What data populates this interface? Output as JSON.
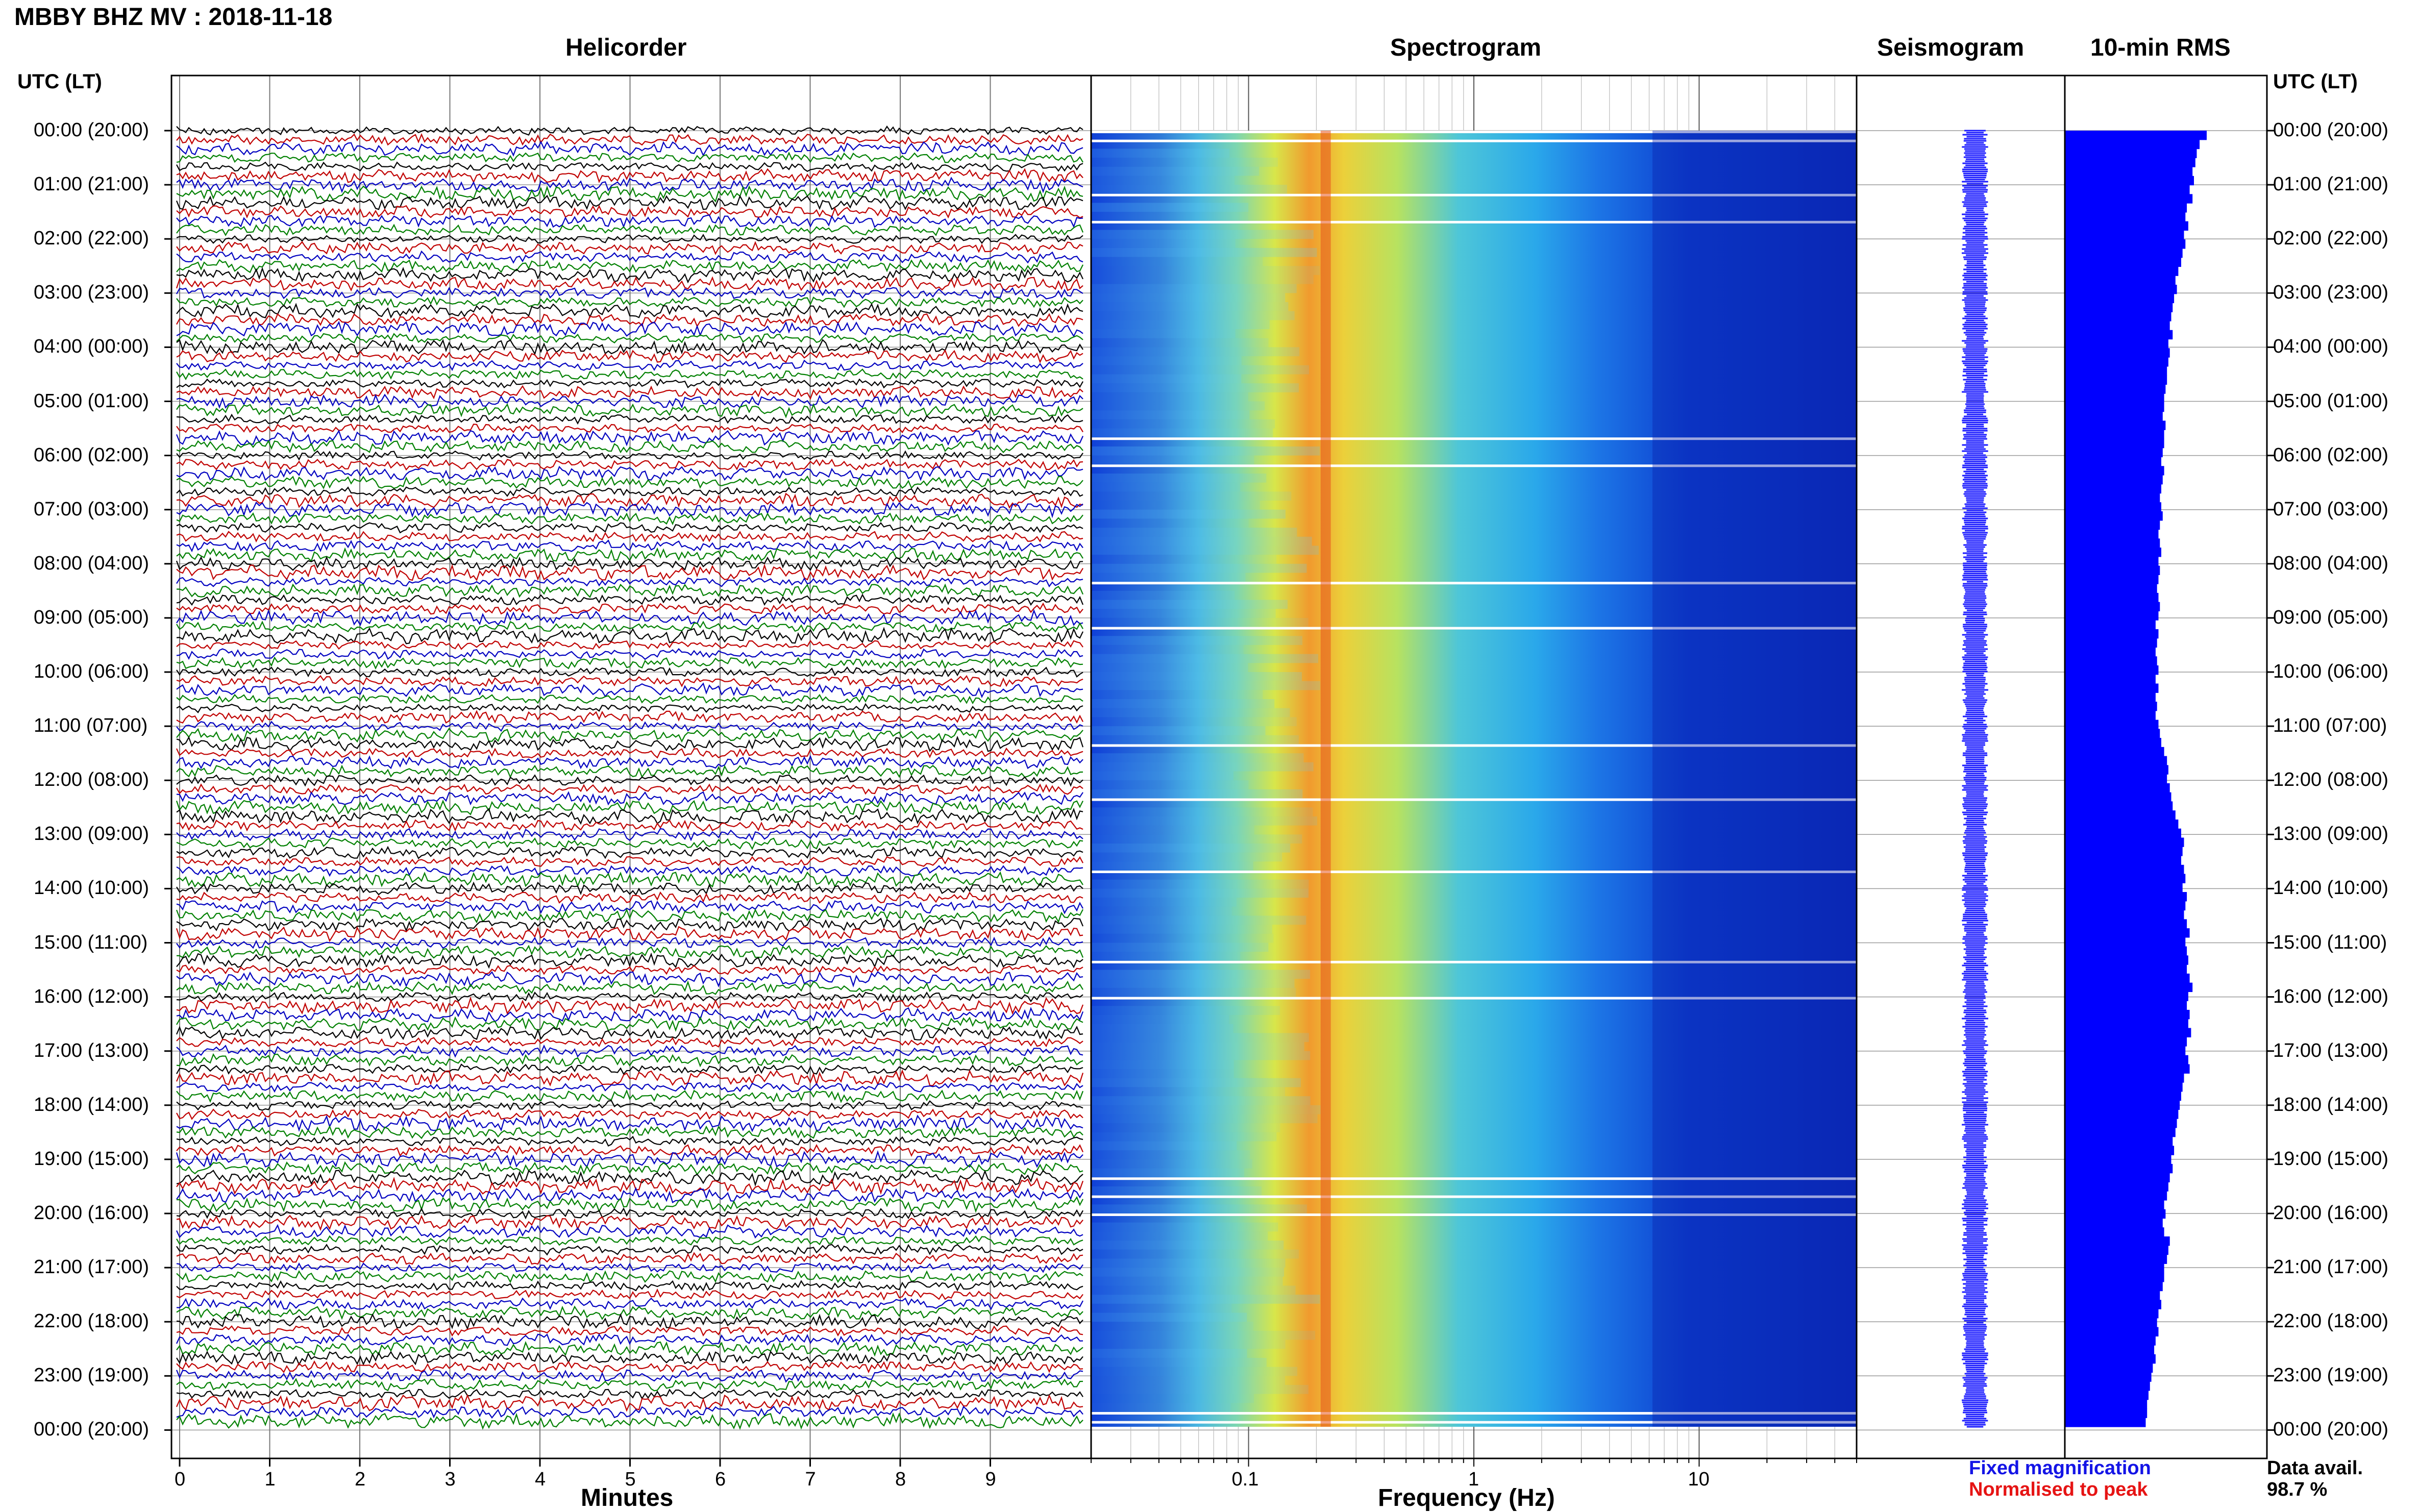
{
  "header": {
    "station": "MBBY BHZ MV : 2018-11-18"
  },
  "panels": {
    "helicorder": "Helicorder",
    "spectrogram": "Spectrogram",
    "seismogram": "Seismogram",
    "rms": "10-min RMS"
  },
  "axes": {
    "time_header": "UTC (LT)",
    "helicorder_xlabel": "Minutes",
    "spectrogram_xlabel": "Frequency (Hz)",
    "minute_ticks": [
      "0",
      "1",
      "2",
      "3",
      "4",
      "5",
      "6",
      "7",
      "8",
      "9"
    ],
    "frequency_ticks": [
      "0.1",
      "1",
      "10"
    ],
    "hour_labels": [
      "00:00 (20:00)",
      "01:00 (21:00)",
      "02:00 (22:00)",
      "03:00 (23:00)",
      "04:00 (00:00)",
      "05:00 (01:00)",
      "06:00 (02:00)",
      "07:00 (03:00)",
      "08:00 (04:00)",
      "09:00 (05:00)",
      "10:00 (06:00)",
      "11:00 (07:00)",
      "12:00 (08:00)",
      "13:00 (09:00)",
      "14:00 (10:00)",
      "15:00 (11:00)",
      "16:00 (12:00)",
      "17:00 (13:00)",
      "18:00 (14:00)",
      "19:00 (15:00)",
      "20:00 (16:00)",
      "21:00 (17:00)",
      "22:00 (18:00)",
      "23:00 (19:00)",
      "00:00 (20:00)"
    ]
  },
  "legend": {
    "fixed": "Fixed magnification",
    "normalised": "Normalised to peak",
    "avail_label": "Data avail.",
    "avail_value": "98.7 %"
  },
  "colors": {
    "trace_cycle": [
      "#000000",
      "#c00000",
      "#0000c0",
      "#008000"
    ],
    "rms_bar": "#0000ff",
    "seismogram": "#1a1aff"
  },
  "chart_data": [
    {
      "type": "line",
      "title": "Helicorder",
      "xlabel": "Minutes",
      "xlim": [
        0,
        10
      ],
      "ylim": [
        "00:00",
        "24:00"
      ],
      "rows_per_hour": 6,
      "row_minutes": 10
    },
    {
      "type": "heatmap",
      "title": "Spectrogram",
      "xlabel": "Frequency (Hz)",
      "x_scale": "log",
      "xlim": [
        0.02,
        50
      ],
      "x_ticks": [
        0.1,
        1,
        10
      ],
      "peak_frequency_hz": 0.22,
      "colormap": "jet"
    },
    {
      "type": "line",
      "title": "Seismogram"
    },
    {
      "type": "bar",
      "title": "10-min RMS",
      "orientation": "horizontal",
      "values": [
        1.0,
        0.95,
        0.93,
        0.92,
        0.9,
        0.91,
        0.88,
        0.9,
        0.86,
        0.85,
        0.87,
        0.84,
        0.85,
        0.83,
        0.82,
        0.8,
        0.78,
        0.79,
        0.77,
        0.76,
        0.75,
        0.74,
        0.76,
        0.73,
        0.74,
        0.73,
        0.72,
        0.72,
        0.71,
        0.7,
        0.7,
        0.69,
        0.71,
        0.7,
        0.7,
        0.69,
        0.68,
        0.7,
        0.69,
        0.68,
        0.67,
        0.68,
        0.69,
        0.67,
        0.66,
        0.67,
        0.68,
        0.66,
        0.67,
        0.66,
        0.65,
        0.66,
        0.67,
        0.66,
        0.64,
        0.66,
        0.65,
        0.64,
        0.65,
        0.66,
        0.64,
        0.66,
        0.64,
        0.65,
        0.64,
        0.66,
        0.67,
        0.68,
        0.7,
        0.72,
        0.73,
        0.72,
        0.74,
        0.75,
        0.76,
        0.78,
        0.8,
        0.82,
        0.84,
        0.83,
        0.82,
        0.84,
        0.85,
        0.83,
        0.86,
        0.85,
        0.84,
        0.86,
        0.88,
        0.85,
        0.86,
        0.87,
        0.86,
        0.88,
        0.9,
        0.87,
        0.86,
        0.88,
        0.87,
        0.89,
        0.86,
        0.85,
        0.87,
        0.88,
        0.84,
        0.83,
        0.82,
        0.81,
        0.8,
        0.79,
        0.78,
        0.76,
        0.77,
        0.75,
        0.76,
        0.74,
        0.73,
        0.72,
        0.7,
        0.71,
        0.69,
        0.7,
        0.74,
        0.73,
        0.72,
        0.7,
        0.7,
        0.69,
        0.67,
        0.68,
        0.66,
        0.65,
        0.66,
        0.64,
        0.63,
        0.64,
        0.62,
        0.61,
        0.6,
        0.59,
        0.58,
        0.58,
        0.57
      ]
    }
  ]
}
